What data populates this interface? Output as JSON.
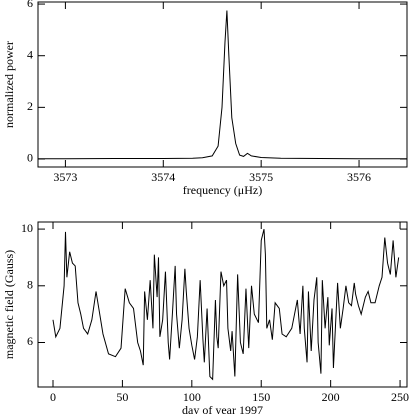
{
  "chart_data": [
    {
      "type": "line",
      "xlabel": "frequency (μHz)",
      "ylabel": "normalized power",
      "color": "#000000",
      "x": [
        3572.72,
        3573.0,
        3573.5,
        3574.0,
        3574.3,
        3574.4,
        3574.5,
        3574.56,
        3574.6,
        3574.63,
        3574.65,
        3574.67,
        3574.7,
        3574.74,
        3574.78,
        3574.82,
        3574.86,
        3574.9,
        3575.0,
        3575.2,
        3575.6,
        3576.0,
        3576.49
      ],
      "values": [
        0.01,
        0.01,
        0.02,
        0.02,
        0.03,
        0.05,
        0.12,
        0.5,
        2.0,
        4.5,
        5.75,
        4.0,
        1.6,
        0.6,
        0.15,
        0.1,
        0.22,
        0.12,
        0.06,
        0.03,
        0.02,
        0.01,
        0.01
      ],
      "xlim": [
        3572.72,
        3576.49
      ],
      "ylim": [
        -0.31,
        6.08
      ],
      "xticks": [
        3573,
        3574,
        3575,
        3576
      ],
      "yticks": [
        0,
        2,
        4,
        6
      ]
    },
    {
      "type": "line",
      "xlabel": "day of year 1997",
      "ylabel": "magnetic field (Gauss)",
      "color": "#000000",
      "x": [
        0,
        2,
        5,
        8,
        9,
        10,
        12,
        14,
        16,
        18,
        20,
        22,
        25,
        28,
        31,
        33,
        36,
        40,
        45,
        49,
        52,
        55,
        58,
        61,
        63,
        65,
        66,
        68,
        70,
        72,
        73,
        75,
        76,
        77,
        79,
        81,
        83,
        84,
        86,
        88,
        89,
        91,
        93,
        95,
        96,
        98,
        100,
        102,
        104,
        106,
        108,
        109,
        111,
        113,
        115,
        117,
        118,
        119,
        121,
        123,
        125,
        126,
        128,
        129,
        131,
        133,
        135,
        137,
        139,
        141,
        143,
        145,
        148,
        150,
        152,
        153,
        154,
        156,
        158,
        160,
        163,
        165,
        168,
        172,
        176,
        178,
        180,
        181,
        183,
        184,
        186,
        188,
        190,
        191,
        193,
        194,
        196,
        198,
        199,
        201,
        202,
        205,
        207,
        209,
        211,
        213,
        215,
        217,
        218,
        220,
        222,
        225,
        227,
        229,
        232,
        235,
        237,
        239,
        241,
        243,
        245,
        247,
        249
      ],
      "values": [
        6.8,
        6.2,
        6.5,
        8.0,
        9.9,
        8.3,
        9.2,
        8.8,
        8.7,
        7.4,
        7.0,
        6.5,
        6.3,
        6.8,
        7.8,
        7.2,
        6.3,
        5.6,
        5.5,
        5.8,
        7.9,
        7.4,
        7.2,
        6.0,
        5.7,
        5.2,
        7.8,
        6.8,
        8.2,
        6.5,
        9.1,
        7.6,
        9.0,
        6.2,
        6.8,
        8.5,
        6.0,
        5.4,
        7.0,
        8.7,
        7.0,
        5.8,
        6.8,
        8.6,
        7.8,
        6.5,
        5.9,
        5.4,
        6.2,
        8.2,
        6.1,
        5.3,
        7.2,
        4.8,
        4.7,
        7.5,
        6.2,
        5.8,
        8.5,
        8.0,
        8.2,
        6.5,
        5.7,
        6.4,
        4.8,
        8.4,
        6.0,
        5.6,
        7.9,
        5.8,
        8.0,
        7.0,
        6.7,
        9.6,
        10.0,
        9.1,
        6.5,
        6.8,
        6.1,
        7.4,
        7.2,
        6.3,
        6.2,
        6.5,
        7.5,
        6.3,
        8.0,
        6.5,
        5.3,
        7.8,
        5.7,
        7.5,
        8.3,
        6.0,
        4.9,
        8.2,
        6.5,
        7.6,
        5.9,
        7.2,
        5.1,
        8.1,
        6.5,
        7.2,
        8.0,
        7.4,
        7.3,
        8.1,
        7.7,
        7.3,
        7.0,
        7.6,
        7.8,
        7.4,
        7.4,
        8.0,
        8.3,
        9.7,
        8.8,
        8.4,
        9.6,
        8.3,
        9.0
      ],
      "xlim": [
        -10.8,
        255
      ],
      "ylim": [
        4.43,
        10.25
      ],
      "xticks": [
        0,
        50,
        100,
        150,
        200,
        250
      ],
      "yticks": [
        6,
        8,
        10
      ]
    }
  ]
}
